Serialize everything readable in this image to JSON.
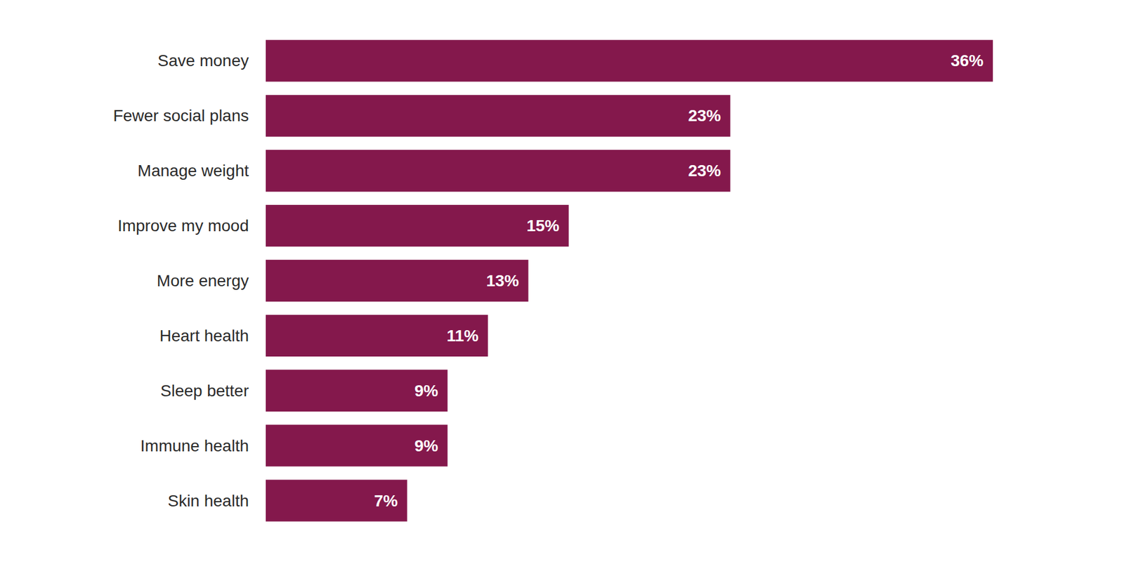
{
  "chart_data": {
    "type": "bar",
    "orientation": "horizontal",
    "categories": [
      "Save money",
      "Fewer social plans",
      "Manage weight",
      "Improve my mood",
      "More energy",
      "Heart health",
      "Sleep better",
      "Immune health",
      "Skin health"
    ],
    "values": [
      36,
      23,
      23,
      15,
      13,
      11,
      9,
      9,
      7
    ],
    "value_labels": [
      "36%",
      "23%",
      "23%",
      "15%",
      "13%",
      "11%",
      "9%",
      "9%",
      "7%"
    ],
    "color": "#84184c",
    "xlim": [
      0,
      36
    ],
    "grid": false,
    "data_labels": true,
    "tick_labels": "y"
  }
}
